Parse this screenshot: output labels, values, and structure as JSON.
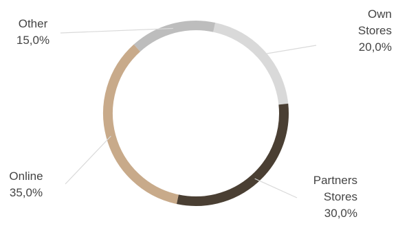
{
  "chart_data": {
    "type": "pie",
    "style": "donut",
    "start_angle_deg": 12,
    "categories": [
      "Own Stores",
      "Partners Stores",
      "Online",
      "Other"
    ],
    "values": [
      20.0,
      30.0,
      35.0,
      15.0
    ],
    "value_labels": [
      "20,0%",
      "30,0%",
      "35,0%",
      "15,0%"
    ],
    "label_lines": [
      [
        "Own",
        "Stores",
        "20,0%"
      ],
      [
        "Partners",
        "Stores",
        "30,0%"
      ],
      [
        "Online",
        "35,0%"
      ],
      [
        "Other",
        "15,0%"
      ]
    ],
    "colors": [
      "#d9d9d9",
      "#4a3f33",
      "#c8aa8a",
      "#bdbdbd"
    ],
    "leader_color": "#d9d9d9",
    "legend": "none"
  }
}
